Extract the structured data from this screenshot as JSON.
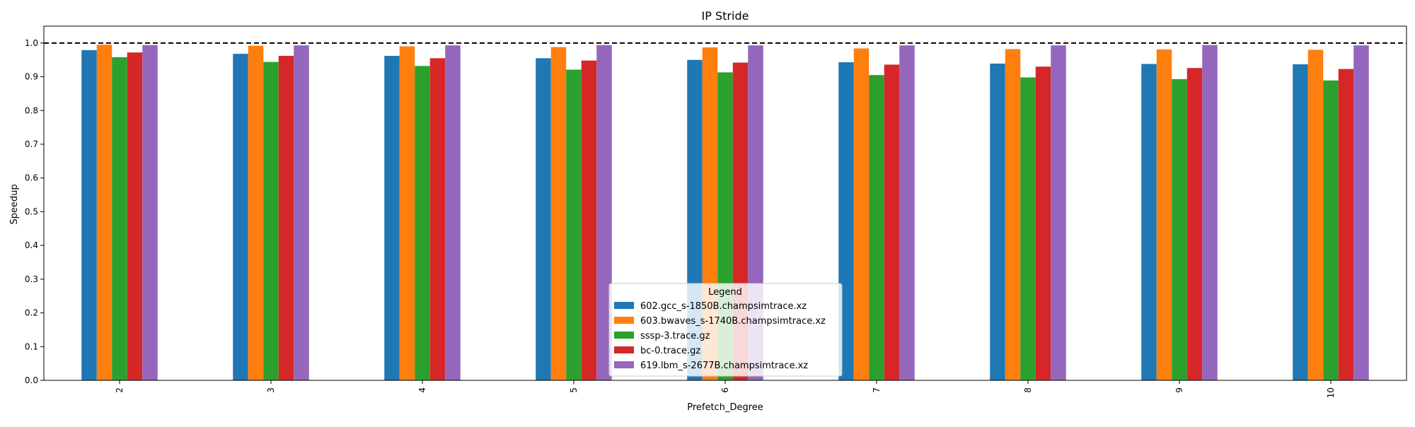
{
  "chart_data": {
    "type": "bar",
    "title": "IP Stride",
    "xlabel": "Prefetch_Degree",
    "ylabel": "Speedup",
    "categories": [
      "2",
      "3",
      "4",
      "5",
      "6",
      "7",
      "8",
      "9",
      "10"
    ],
    "ylim": [
      0,
      1.05
    ],
    "yticks": [
      "0.0",
      "0.1",
      "0.2",
      "0.3",
      "0.4",
      "0.5",
      "0.6",
      "0.7",
      "0.8",
      "0.9",
      "1.0"
    ],
    "reference_line": 1.0,
    "legend": {
      "title": "Legend",
      "placement": "bottom-center"
    },
    "series": [
      {
        "name": "602.gcc_s-1850B.champsimtrace.xz",
        "color": "#1f77b4",
        "values": [
          0.979,
          0.968,
          0.962,
          0.955,
          0.95,
          0.943,
          0.939,
          0.938,
          0.937
        ]
      },
      {
        "name": "603.bwaves_s-1740B.champsimtrace.xz",
        "color": "#ff7f0e",
        "values": [
          0.995,
          0.992,
          0.99,
          0.988,
          0.987,
          0.984,
          0.982,
          0.981,
          0.98
        ]
      },
      {
        "name": "sssp-3.trace.gz",
        "color": "#2ca02c",
        "values": [
          0.958,
          0.944,
          0.932,
          0.921,
          0.913,
          0.905,
          0.898,
          0.893,
          0.889
        ]
      },
      {
        "name": "bc-0.trace.gz",
        "color": "#d62728",
        "values": [
          0.972,
          0.962,
          0.955,
          0.948,
          0.942,
          0.936,
          0.93,
          0.926,
          0.923
        ]
      },
      {
        "name": "619.lbm_s-2677B.champsimtrace.xz",
        "color": "#9467bd",
        "values": [
          0.994,
          0.993,
          0.993,
          0.994,
          0.993,
          0.993,
          0.993,
          0.994,
          0.993
        ]
      }
    ]
  }
}
